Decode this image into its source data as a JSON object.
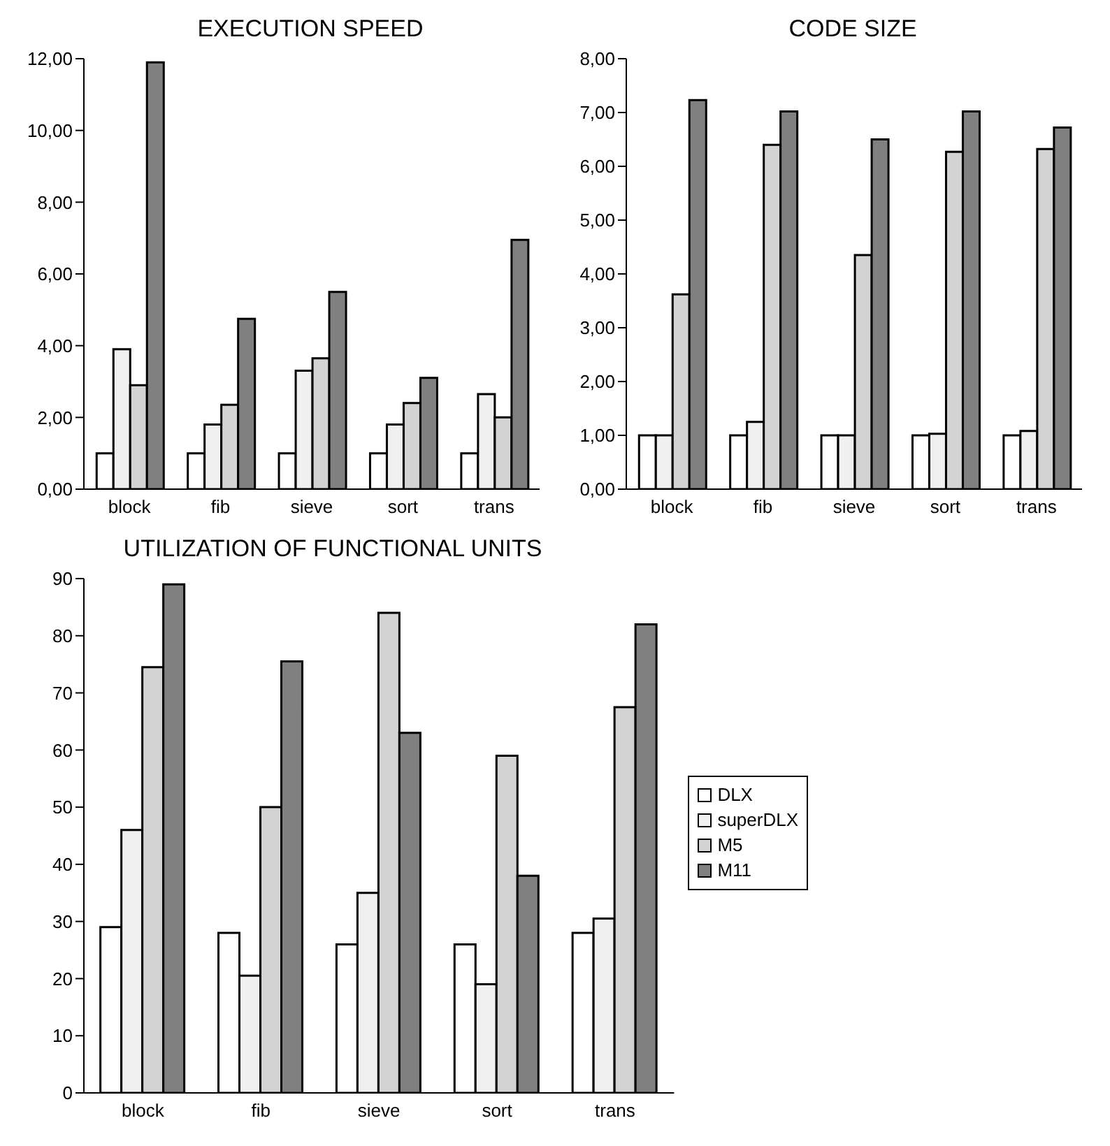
{
  "chart_data": [
    {
      "type": "bar",
      "title": "EXECUTION SPEED",
      "categories": [
        "block",
        "fib",
        "sieve",
        "sort",
        "trans"
      ],
      "series": [
        {
          "color": "#ffffff",
          "values": [
            1,
            1,
            1,
            1,
            1
          ]
        },
        {
          "color": "#f0f0f0",
          "values": [
            3.9,
            1.8,
            3.3,
            1.8,
            2.65
          ]
        },
        {
          "color": "#d3d3d3",
          "values": [
            2.9,
            2.35,
            3.65,
            2.4,
            2.0
          ]
        },
        {
          "color": "#808080",
          "values": [
            11.9,
            4.75,
            5.5,
            3.1,
            6.95
          ]
        }
      ],
      "ylim": [
        0,
        12
      ],
      "yticks": [
        {
          "value": 0,
          "label": "0,00"
        },
        {
          "value": 2,
          "label": "2,00"
        },
        {
          "value": 4,
          "label": "4,00"
        },
        {
          "value": 6,
          "label": "6,00"
        },
        {
          "value": 8,
          "label": "8,00"
        },
        {
          "value": 10,
          "label": "10,00"
        },
        {
          "value": 12,
          "label": "12,00"
        }
      ],
      "grid": false,
      "legend": false
    },
    {
      "type": "bar",
      "title": "CODE SIZE",
      "categories": [
        "block",
        "fib",
        "sieve",
        "sort",
        "trans"
      ],
      "series": [
        {
          "color": "#ffffff",
          "values": [
            1,
            1,
            1,
            1,
            1
          ]
        },
        {
          "color": "#f0f0f0",
          "values": [
            1.0,
            1.25,
            1.0,
            1.03,
            1.08
          ]
        },
        {
          "color": "#d3d3d3",
          "values": [
            3.62,
            6.4,
            4.35,
            6.27,
            6.32
          ]
        },
        {
          "color": "#808080",
          "values": [
            7.23,
            7.02,
            6.5,
            7.02,
            6.72
          ]
        }
      ],
      "ylim": [
        0,
        8
      ],
      "yticks": [
        {
          "value": 0,
          "label": "0,00"
        },
        {
          "value": 1,
          "label": "1,00"
        },
        {
          "value": 2,
          "label": "2,00"
        },
        {
          "value": 3,
          "label": "3,00"
        },
        {
          "value": 4,
          "label": "4,00"
        },
        {
          "value": 5,
          "label": "5,00"
        },
        {
          "value": 6,
          "label": "6,00"
        },
        {
          "value": 7,
          "label": "7,00"
        },
        {
          "value": 8,
          "label": "8,00"
        }
      ],
      "grid": false,
      "legend": false
    },
    {
      "type": "bar",
      "title": "UTILIZATION OF FUNCTIONAL UNITS",
      "categories": [
        "block",
        "fib",
        "sieve",
        "sort",
        "trans"
      ],
      "series": [
        {
          "name": "DLX",
          "color": "#ffffff",
          "values": [
            29,
            28,
            26,
            26,
            28
          ]
        },
        {
          "name": "superDLX",
          "color": "#f0f0f0",
          "values": [
            46,
            20.5,
            35,
            19,
            30.5
          ]
        },
        {
          "name": "M5",
          "color": "#d3d3d3",
          "values": [
            74.5,
            50,
            84,
            59,
            67.5
          ]
        },
        {
          "name": "M11",
          "color": "#808080",
          "values": [
            89,
            75.5,
            63,
            38,
            82
          ]
        }
      ],
      "ylim": [
        0,
        90
      ],
      "yticks": [
        0,
        10,
        20,
        30,
        40,
        50,
        60,
        70,
        80,
        90
      ],
      "grid": false,
      "legend": "right"
    }
  ]
}
